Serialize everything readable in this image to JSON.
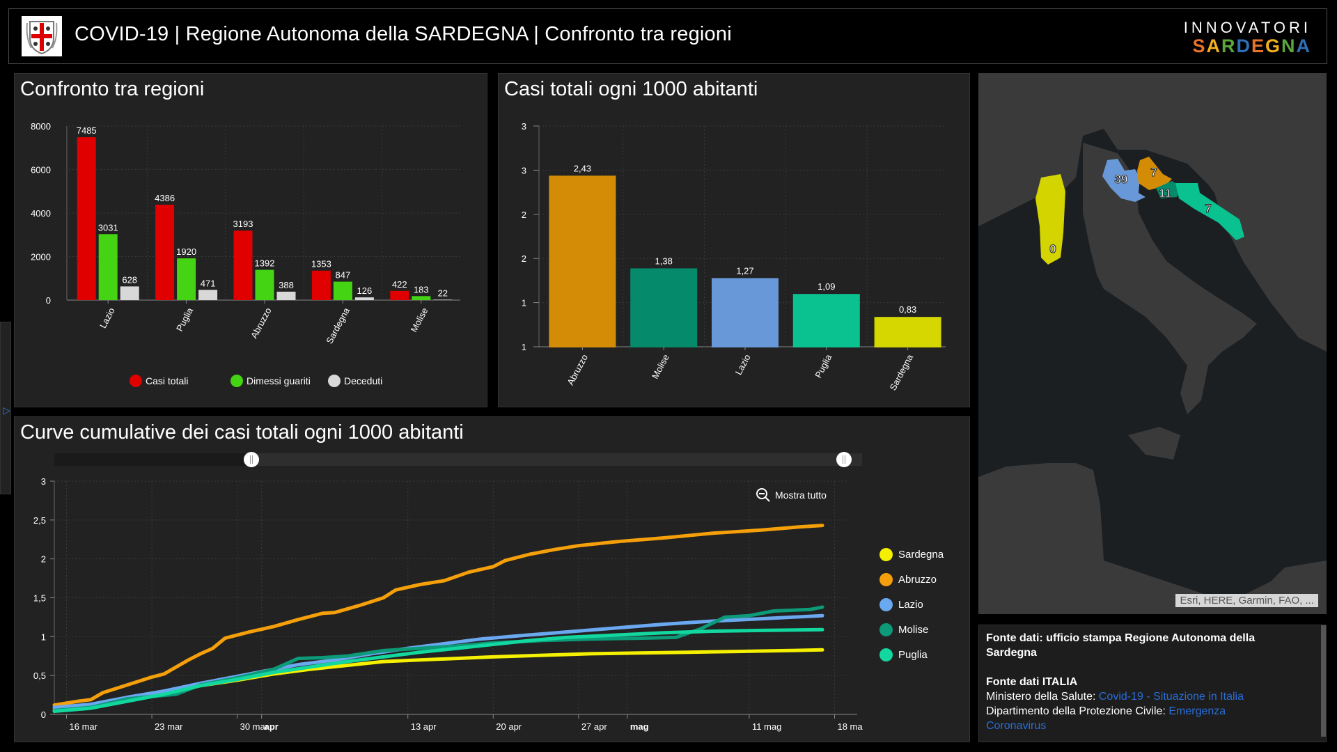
{
  "header": {
    "title": "COVID-19 | Regione Autonoma della SARDEGNA | Confronto tra regioni",
    "brand_top": "INNOVATORI",
    "brand_bottom_letters": [
      {
        "ch": "S",
        "color": "#e8732a"
      },
      {
        "ch": "A",
        "color": "#f0b020"
      },
      {
        "ch": "R",
        "color": "#5aa63a"
      },
      {
        "ch": "D",
        "color": "#2f6fb8"
      },
      {
        "ch": "E",
        "color": "#e8732a"
      },
      {
        "ch": "G",
        "color": "#f0b020"
      },
      {
        "ch": "N",
        "color": "#5aa63a"
      },
      {
        "ch": "A",
        "color": "#2f6fb8"
      }
    ]
  },
  "panel1": {
    "title": "Confronto tra regioni",
    "chart_data": {
      "type": "bar",
      "title": "Confronto tra regioni",
      "categories": [
        "Lazio",
        "Puglia",
        "Abruzzo",
        "Sardegna",
        "Molise"
      ],
      "series": [
        {
          "name": "Casi totali",
          "color": "#e00000",
          "values": [
            7485,
            4386,
            3193,
            1353,
            422
          ]
        },
        {
          "name": "Dimessi guariti",
          "color": "#44d414",
          "values": [
            3031,
            1920,
            1392,
            847,
            183
          ]
        },
        {
          "name": "Deceduti",
          "color": "#d8d8d8",
          "values": [
            628,
            471,
            388,
            126,
            22
          ]
        }
      ],
      "yticks": [
        "0",
        "2000",
        "4000",
        "6000",
        "8000"
      ],
      "ylim": [
        0,
        8000
      ],
      "grid": true,
      "legend": "bottom"
    }
  },
  "panel2": {
    "title": "Casi totali ogni 1000 abitanti",
    "chart_data": {
      "type": "bar",
      "title": "Casi totali ogni 1000 abitanti",
      "categories": [
        "Abruzzo",
        "Molise",
        "Lazio",
        "Puglia",
        "Sardegna"
      ],
      "values": [
        2.43,
        1.38,
        1.27,
        1.09,
        0.83
      ],
      "labels": [
        "2,43",
        "1,38",
        "1,27",
        "1,09",
        "0,83"
      ],
      "colors": [
        "#d48c06",
        "#068a6c",
        "#6898d8",
        "#0ac190",
        "#d6d600"
      ],
      "ytick_values": [
        0.5,
        1,
        1.5,
        2,
        2.5,
        3
      ],
      "yticks": [
        "1",
        "1",
        "2",
        "2",
        "3",
        "3"
      ],
      "ylim": [
        0.5,
        3
      ],
      "grid": true
    }
  },
  "panel3": {
    "title": "Curve cumulative dei casi totali ogni 1000 abitanti",
    "zoom_label": "Mostra tutto",
    "chart_data": {
      "type": "line",
      "title": "Curve cumulative dei casi totali ogni 1000 abitanti",
      "x_start": "15 mar",
      "x_unit": "days since 15 mar",
      "xticks": [
        {
          "day": 1,
          "label": "16 mar",
          "bold": false
        },
        {
          "day": 8,
          "label": "23 mar",
          "bold": false
        },
        {
          "day": 15,
          "label": "30 mar",
          "bold": false
        },
        {
          "day": 17,
          "label": "apr",
          "bold": true
        },
        {
          "day": 29,
          "label": "13 apr",
          "bold": false
        },
        {
          "day": 36,
          "label": "20 apr",
          "bold": false
        },
        {
          "day": 43,
          "label": "27 apr",
          "bold": false
        },
        {
          "day": 47,
          "label": "mag",
          "bold": true
        },
        {
          "day": 57,
          "label": "11 mag",
          "bold": false
        },
        {
          "day": 64,
          "label": "18 ma",
          "bold": false
        }
      ],
      "yticks": [
        "0",
        "0,5",
        "1",
        "1,5",
        "2",
        "2,5",
        "3"
      ],
      "ytick_values": [
        0,
        0.5,
        1,
        1.5,
        2,
        2.5,
        3
      ],
      "ylim": [
        0,
        3
      ],
      "xlim": [
        0,
        65
      ],
      "legend": "right",
      "series": [
        {
          "name": "Sardegna",
          "color": "#f5f000",
          "points": [
            [
              0,
              0.06
            ],
            [
              3,
              0.1
            ],
            [
              6,
              0.2
            ],
            [
              9,
              0.28
            ],
            [
              12,
              0.37
            ],
            [
              15,
              0.44
            ],
            [
              18,
              0.52
            ],
            [
              21,
              0.58
            ],
            [
              24,
              0.63
            ],
            [
              27,
              0.68
            ],
            [
              30,
              0.7
            ],
            [
              33,
              0.72
            ],
            [
              36,
              0.74
            ],
            [
              40,
              0.76
            ],
            [
              44,
              0.78
            ],
            [
              48,
              0.79
            ],
            [
              52,
              0.8
            ],
            [
              56,
              0.81
            ],
            [
              60,
              0.82
            ],
            [
              63,
              0.83
            ]
          ]
        },
        {
          "name": "Abruzzo",
          "color": "#f5a00a",
          "points": [
            [
              0,
              0.12
            ],
            [
              2,
              0.17
            ],
            [
              3,
              0.19
            ],
            [
              4,
              0.28
            ],
            [
              6,
              0.38
            ],
            [
              8,
              0.48
            ],
            [
              9,
              0.52
            ],
            [
              11,
              0.7
            ],
            [
              12,
              0.78
            ],
            [
              13,
              0.85
            ],
            [
              14,
              0.98
            ],
            [
              16,
              1.06
            ],
            [
              18,
              1.13
            ],
            [
              20,
              1.22
            ],
            [
              22,
              1.3
            ],
            [
              23,
              1.31
            ],
            [
              25,
              1.4
            ],
            [
              27,
              1.5
            ],
            [
              28,
              1.6
            ],
            [
              30,
              1.67
            ],
            [
              32,
              1.72
            ],
            [
              34,
              1.83
            ],
            [
              36,
              1.9
            ],
            [
              37,
              1.98
            ],
            [
              39,
              2.06
            ],
            [
              41,
              2.12
            ],
            [
              43,
              2.17
            ],
            [
              46,
              2.22
            ],
            [
              50,
              2.27
            ],
            [
              54,
              2.33
            ],
            [
              58,
              2.37
            ],
            [
              61,
              2.41
            ],
            [
              63,
              2.43
            ]
          ]
        },
        {
          "name": "Lazio",
          "color": "#6aa8f0",
          "points": [
            [
              0,
              0.09
            ],
            [
              3,
              0.13
            ],
            [
              6,
              0.22
            ],
            [
              9,
              0.3
            ],
            [
              12,
              0.4
            ],
            [
              15,
              0.49
            ],
            [
              18,
              0.58
            ],
            [
              20,
              0.64
            ],
            [
              23,
              0.7
            ],
            [
              26,
              0.78
            ],
            [
              29,
              0.85
            ],
            [
              32,
              0.91
            ],
            [
              35,
              0.97
            ],
            [
              38,
              1.01
            ],
            [
              42,
              1.06
            ],
            [
              46,
              1.11
            ],
            [
              50,
              1.16
            ],
            [
              54,
              1.2
            ],
            [
              58,
              1.23
            ],
            [
              63,
              1.27
            ]
          ]
        },
        {
          "name": "Molise",
          "color": "#0c9a78",
          "points": [
            [
              0,
              0.05
            ],
            [
              3,
              0.09
            ],
            [
              6,
              0.2
            ],
            [
              8,
              0.23
            ],
            [
              10,
              0.26
            ],
            [
              12,
              0.38
            ],
            [
              15,
              0.47
            ],
            [
              18,
              0.58
            ],
            [
              20,
              0.72
            ],
            [
              22,
              0.73
            ],
            [
              24,
              0.75
            ],
            [
              27,
              0.82
            ],
            [
              30,
              0.85
            ],
            [
              33,
              0.88
            ],
            [
              36,
              0.92
            ],
            [
              40,
              0.95
            ],
            [
              44,
              0.97
            ],
            [
              48,
              0.98
            ],
            [
              51,
              0.99
            ],
            [
              53,
              1.1
            ],
            [
              55,
              1.25
            ],
            [
              57,
              1.27
            ],
            [
              59,
              1.33
            ],
            [
              62,
              1.35
            ],
            [
              63,
              1.38
            ]
          ]
        },
        {
          "name": "Puglia",
          "color": "#12d8a0",
          "points": [
            [
              0,
              0.04
            ],
            [
              3,
              0.08
            ],
            [
              6,
              0.17
            ],
            [
              9,
              0.26
            ],
            [
              12,
              0.37
            ],
            [
              15,
              0.45
            ],
            [
              18,
              0.54
            ],
            [
              21,
              0.61
            ],
            [
              24,
              0.68
            ],
            [
              27,
              0.74
            ],
            [
              30,
              0.8
            ],
            [
              33,
              0.85
            ],
            [
              36,
              0.9
            ],
            [
              39,
              0.95
            ],
            [
              42,
              0.99
            ],
            [
              46,
              1.02
            ],
            [
              50,
              1.05
            ],
            [
              54,
              1.07
            ],
            [
              58,
              1.08
            ],
            [
              63,
              1.09
            ]
          ]
        }
      ]
    }
  },
  "map": {
    "attribution": "Esri, HERE, Garmin, FAO, ...",
    "labels": [
      {
        "region": "Sardegna",
        "value": "0",
        "color": "#d4d400"
      },
      {
        "region": "Lazio",
        "value": "39",
        "color": "#6898d8"
      },
      {
        "region": "Abruzzo",
        "value": "7",
        "color": "#d48c06"
      },
      {
        "region": "Molise",
        "value": "11",
        "color": "#068a6c"
      },
      {
        "region": "Puglia",
        "value": "7",
        "color": "#0ac190"
      }
    ]
  },
  "info": {
    "line1_bold": "Fonte dati: ufficio stampa Regione Autonoma della Sardegna",
    "line2_bold": "Fonte dati ITALIA",
    "line3_prefix": "Ministero della Salute: ",
    "line3_link": "Covid-19 - Situazione in Italia",
    "line4_prefix": "Dipartimento della Protezione Civile: ",
    "line4_link": "Emergenza Coronavirus"
  }
}
